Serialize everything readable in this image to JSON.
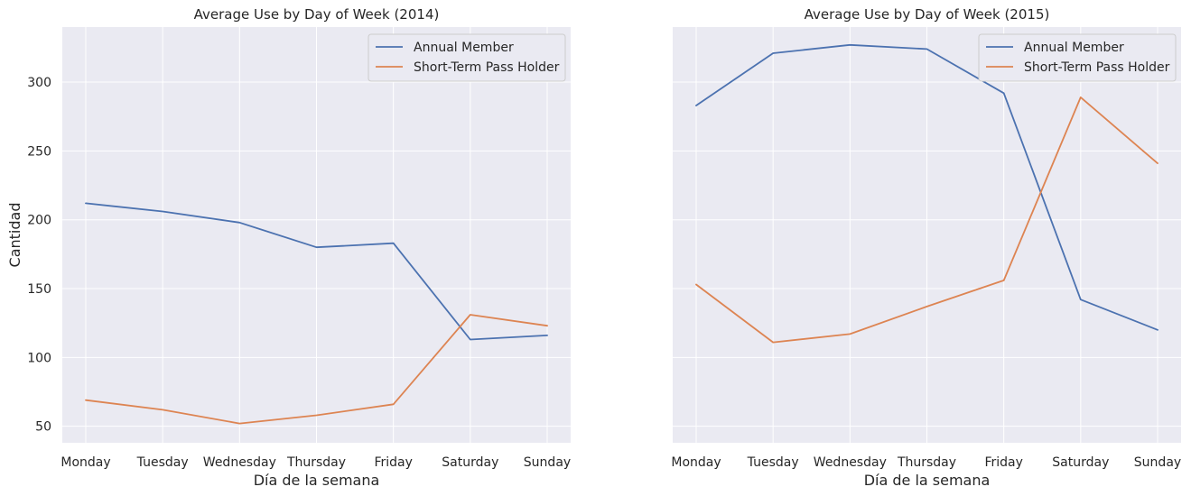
{
  "chart_data": [
    {
      "type": "line",
      "title": "Average Use by Day of Week (2014)",
      "xlabel": "Día de la semana",
      "ylabel": "Cantidad",
      "categories": [
        "Monday",
        "Tuesday",
        "Wednesday",
        "Thursday",
        "Friday",
        "Saturday",
        "Sunday"
      ],
      "ylim": [
        38,
        340
      ],
      "yticks": [
        50,
        100,
        150,
        200,
        250,
        300
      ],
      "grid": true,
      "legend": "top-right",
      "series": [
        {
          "name": "Annual Member",
          "color": "#4c72b0",
          "values": [
            212,
            206,
            198,
            180,
            183,
            113,
            116
          ]
        },
        {
          "name": "Short-Term Pass Holder",
          "color": "#dd8452",
          "values": [
            69,
            62,
            52,
            58,
            66,
            131,
            123
          ]
        }
      ]
    },
    {
      "type": "line",
      "title": "Average Use by Day of Week (2015)",
      "xlabel": "Día de la semana",
      "ylabel": "",
      "categories": [
        "Monday",
        "Tuesday",
        "Wednesday",
        "Thursday",
        "Friday",
        "Saturday",
        "Sunday"
      ],
      "ylim": [
        38,
        340
      ],
      "yticks": [
        50,
        100,
        150,
        200,
        250,
        300
      ],
      "grid": true,
      "legend": "top-right",
      "series": [
        {
          "name": "Annual Member",
          "color": "#4c72b0",
          "values": [
            283,
            321,
            327,
            324,
            292,
            142,
            120
          ]
        },
        {
          "name": "Short-Term Pass Holder",
          "color": "#dd8452",
          "values": [
            153,
            111,
            117,
            137,
            156,
            289,
            241
          ]
        }
      ]
    }
  ]
}
